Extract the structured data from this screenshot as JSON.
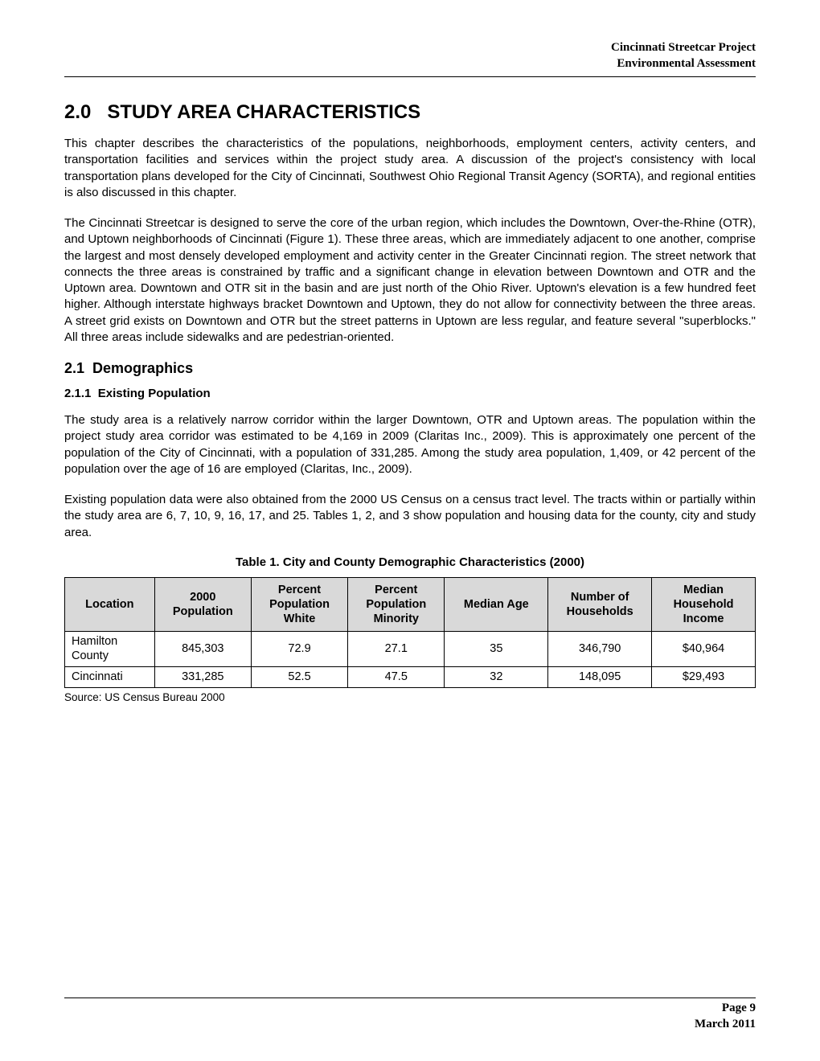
{
  "header": {
    "line1": "Cincinnati Streetcar Project",
    "line2": "Environmental Assessment"
  },
  "section": {
    "number": "2.0",
    "title": "STUDY AREA CHARACTERISTICS",
    "para1": "This chapter describes the characteristics of the populations, neighborhoods, employment centers, activity centers, and transportation facilities and services within the project study area. A discussion of the project's consistency with local transportation plans developed for the City of Cincinnati, Southwest Ohio Regional Transit Agency (SORTA), and regional entities is also discussed in this chapter.",
    "para2": "The Cincinnati Streetcar is designed to serve the core of the urban region, which includes the Downtown, Over-the-Rhine (OTR), and Uptown neighborhoods of Cincinnati (Figure 1).  These three areas, which are immediately adjacent to one another, comprise the largest and most densely developed employment and activity center in the Greater Cincinnati region.  The street network that connects the three areas is constrained by traffic and a significant change in elevation between Downtown and OTR and the Uptown area.  Downtown and OTR sit in the basin and are just north of the Ohio River.  Uptown's elevation is a few hundred feet higher. Although interstate highways bracket Downtown and Uptown, they do not allow for connectivity between the three areas.  A street grid exists on Downtown and OTR but the street patterns in Uptown are less regular, and feature several \"superblocks.\"  All three areas include sidewalks and are pedestrian-oriented."
  },
  "subsection": {
    "number": "2.1",
    "title": "Demographics"
  },
  "subsub": {
    "number": "2.1.1",
    "title": "Existing Population",
    "para1": "The study area is a relatively narrow corridor within the larger Downtown, OTR and Uptown areas. The population within the project study area corridor was estimated to be 4,169 in 2009 (Claritas Inc., 2009).  This is approximately one percent of the population of the City of Cincinnati, with a population of 331,285. Among the study area population, 1,409, or 42 percent of the population over the age of 16 are employed (Claritas, Inc., 2009).",
    "para2": "Existing population data were also obtained from the 2000 US Census on a census tract level. The tracts within or partially within the study area are 6, 7, 10, 9, 16, 17, and 25.  Tables 1, 2, and 3 show population and housing data for the county, city and study area."
  },
  "table": {
    "caption": "Table 1. City and County Demographic Characteristics (2000)",
    "columns": [
      "Location",
      "2000 Population",
      "Percent Population White",
      "Percent Population Minority",
      "Median Age",
      "Number of Households",
      "Median Household Income"
    ],
    "col_widths": [
      "13%",
      "14%",
      "14%",
      "14%",
      "15%",
      "15%",
      "15%"
    ],
    "header_bg": "#d9d9d9",
    "border_color": "#000000",
    "rows": [
      [
        "Hamilton County",
        "845,303",
        "72.9",
        "27.1",
        "35",
        "346,790",
        "$40,964"
      ],
      [
        "Cincinnati",
        "331,285",
        "52.5",
        "47.5",
        "32",
        "148,095",
        "$29,493"
      ]
    ],
    "source": "Source: US Census Bureau 2000"
  },
  "footer": {
    "page": "Page 9",
    "date": "March 2011"
  }
}
